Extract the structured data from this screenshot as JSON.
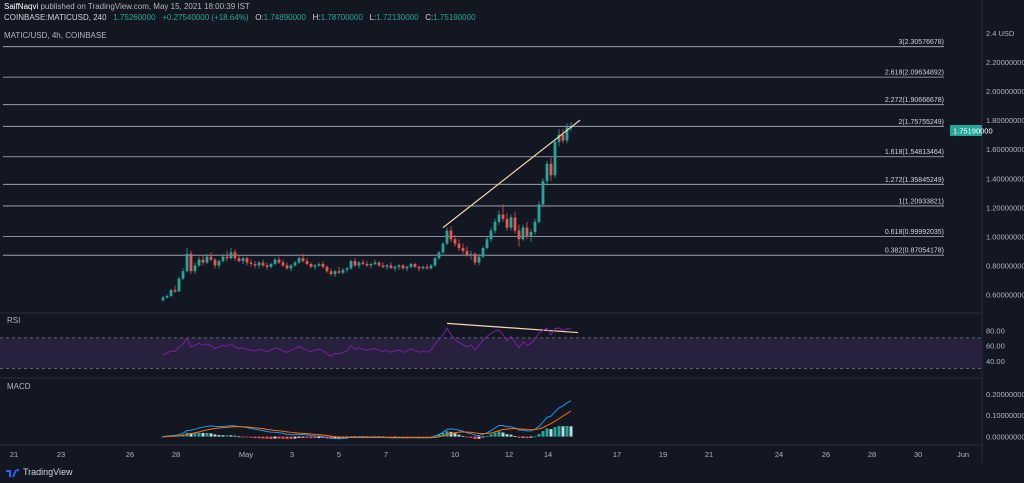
{
  "header": {
    "author": "SaifNaqvi",
    "published_text": "published on TradingView.com, May 15, 2021 18:00:39 IST",
    "symbol_line": "COINBASE:MATICUSD, 240",
    "last": "1.75260000",
    "change": "+0.27540000 (+18.64%)",
    "o_label": "O:",
    "o_value": "1.74890000",
    "h_label": "H:",
    "h_value": "1.78700000",
    "l_label": "L:",
    "l_value": "1.72130000",
    "c_label": "C:",
    "c_value": "1.75190000",
    "pane_title": "MATIC/USD, 4h, COINBASE"
  },
  "footer": {
    "brand": "TradingView"
  },
  "colors": {
    "background": "#131722",
    "up": "#26a69a",
    "down": "#ef5350",
    "fib": "#b2b5be",
    "trendline": "#f6d5b0",
    "rsi": "#7b1fa2",
    "rsi_band": "#2a2240",
    "macd_line": "#2196f3",
    "signal_line": "#ff6d00",
    "current_price": "#26a69a"
  },
  "chart_data": [
    {
      "type": "candlestick",
      "title": "MATIC/USD, 4h, COINBASE",
      "ylim": [
        0.5,
        2.4
      ],
      "y_ticks": [
        "2.4 USD",
        "2.20000000",
        "2.00000000",
        "1.80000000",
        "1.60000000",
        "1.40000000",
        "1.20000000",
        "1.00000000",
        "0.80000000",
        "0.60000000"
      ],
      "y_tick_values": [
        2.4,
        2.2,
        2.0,
        1.8,
        1.6,
        1.4,
        1.2,
        1.0,
        0.8,
        0.6
      ],
      "x_ticks": [
        "21",
        "23",
        "26",
        "28",
        "May",
        "3",
        "5",
        "7",
        "10",
        "12",
        "14",
        "17",
        "19",
        "21",
        "24",
        "26",
        "28",
        "30",
        "Jun"
      ],
      "current_price_label": "1.75190000",
      "current_price": 1.7519,
      "fib_levels": [
        {
          "label": "3(2.30576678)",
          "value": 2.30576678
        },
        {
          "label": "2.618(2.09634892)",
          "value": 2.09634892
        },
        {
          "label": "2.272(1.90666678)",
          "value": 1.90666678
        },
        {
          "label": "2(1.75755249)",
          "value": 1.75755249
        },
        {
          "label": "1.618(1.54813464)",
          "value": 1.54813464
        },
        {
          "label": "1.272(1.35845249)",
          "value": 1.35845249
        },
        {
          "label": "1(1.20933821)",
          "value": 1.20933821
        },
        {
          "label": "0.618(0.99992035)",
          "value": 0.99992035
        },
        {
          "label": "0.382(0.87054178)",
          "value": 0.87054178
        }
      ],
      "trendline": [
        {
          "date": "May 9",
          "value": 1.06
        },
        {
          "date": "May 15",
          "value": 1.8
        }
      ],
      "candles": [
        [
          0.56,
          0.59,
          0.55,
          0.58
        ],
        [
          0.58,
          0.6,
          0.57,
          0.59
        ],
        [
          0.59,
          0.64,
          0.58,
          0.63
        ],
        [
          0.63,
          0.66,
          0.61,
          0.62
        ],
        [
          0.62,
          0.72,
          0.62,
          0.71
        ],
        [
          0.71,
          0.78,
          0.7,
          0.76
        ],
        [
          0.76,
          0.92,
          0.75,
          0.88
        ],
        [
          0.88,
          0.9,
          0.74,
          0.76
        ],
        [
          0.76,
          0.82,
          0.74,
          0.8
        ],
        [
          0.8,
          0.86,
          0.79,
          0.84
        ],
        [
          0.84,
          0.87,
          0.8,
          0.82
        ],
        [
          0.82,
          0.88,
          0.81,
          0.86
        ],
        [
          0.86,
          0.89,
          0.83,
          0.84
        ],
        [
          0.84,
          0.85,
          0.78,
          0.8
        ],
        [
          0.8,
          0.84,
          0.78,
          0.83
        ],
        [
          0.83,
          0.88,
          0.82,
          0.86
        ],
        [
          0.86,
          0.9,
          0.83,
          0.85
        ],
        [
          0.85,
          0.92,
          0.84,
          0.89
        ],
        [
          0.89,
          0.91,
          0.83,
          0.85
        ],
        [
          0.85,
          0.87,
          0.82,
          0.83
        ],
        [
          0.83,
          0.86,
          0.81,
          0.85
        ],
        [
          0.85,
          0.86,
          0.8,
          0.82
        ],
        [
          0.82,
          0.84,
          0.79,
          0.81
        ],
        [
          0.81,
          0.83,
          0.78,
          0.8
        ],
        [
          0.8,
          0.83,
          0.78,
          0.82
        ],
        [
          0.82,
          0.84,
          0.79,
          0.8
        ],
        [
          0.8,
          0.82,
          0.77,
          0.79
        ],
        [
          0.79,
          0.82,
          0.78,
          0.81
        ],
        [
          0.81,
          0.85,
          0.8,
          0.84
        ],
        [
          0.84,
          0.86,
          0.81,
          0.82
        ],
        [
          0.82,
          0.84,
          0.79,
          0.8
        ],
        [
          0.8,
          0.82,
          0.77,
          0.78
        ],
        [
          0.78,
          0.81,
          0.76,
          0.8
        ],
        [
          0.8,
          0.83,
          0.79,
          0.82
        ],
        [
          0.82,
          0.86,
          0.81,
          0.85
        ],
        [
          0.85,
          0.88,
          0.82,
          0.83
        ],
        [
          0.83,
          0.85,
          0.8,
          0.81
        ],
        [
          0.81,
          0.82,
          0.78,
          0.79
        ],
        [
          0.79,
          0.81,
          0.77,
          0.8
        ],
        [
          0.8,
          0.82,
          0.79,
          0.81
        ],
        [
          0.81,
          0.83,
          0.78,
          0.79
        ],
        [
          0.79,
          0.8,
          0.75,
          0.76
        ],
        [
          0.76,
          0.78,
          0.73,
          0.74
        ],
        [
          0.74,
          0.77,
          0.72,
          0.76
        ],
        [
          0.76,
          0.79,
          0.74,
          0.75
        ],
        [
          0.75,
          0.78,
          0.74,
          0.77
        ],
        [
          0.77,
          0.79,
          0.75,
          0.78
        ],
        [
          0.78,
          0.84,
          0.77,
          0.83
        ],
        [
          0.83,
          0.85,
          0.79,
          0.8
        ],
        [
          0.8,
          0.83,
          0.78,
          0.82
        ],
        [
          0.82,
          0.84,
          0.8,
          0.81
        ],
        [
          0.81,
          0.83,
          0.79,
          0.8
        ],
        [
          0.8,
          0.82,
          0.78,
          0.81
        ],
        [
          0.81,
          0.84,
          0.8,
          0.82
        ],
        [
          0.82,
          0.83,
          0.79,
          0.8
        ],
        [
          0.8,
          0.82,
          0.78,
          0.79
        ],
        [
          0.79,
          0.81,
          0.77,
          0.8
        ],
        [
          0.8,
          0.82,
          0.78,
          0.78
        ],
        [
          0.78,
          0.8,
          0.76,
          0.79
        ],
        [
          0.79,
          0.81,
          0.77,
          0.8
        ],
        [
          0.8,
          0.81,
          0.77,
          0.78
        ],
        [
          0.78,
          0.8,
          0.76,
          0.79
        ],
        [
          0.79,
          0.82,
          0.78,
          0.81
        ],
        [
          0.81,
          0.82,
          0.78,
          0.79
        ],
        [
          0.79,
          0.8,
          0.76,
          0.78
        ],
        [
          0.78,
          0.8,
          0.77,
          0.79
        ],
        [
          0.79,
          0.81,
          0.77,
          0.78
        ],
        [
          0.78,
          0.81,
          0.77,
          0.8
        ],
        [
          0.8,
          0.86,
          0.79,
          0.85
        ],
        [
          0.85,
          0.9,
          0.84,
          0.89
        ],
        [
          0.89,
          0.96,
          0.88,
          0.95
        ],
        [
          0.95,
          1.06,
          0.94,
          1.04
        ],
        [
          1.04,
          1.07,
          0.96,
          0.98
        ],
        [
          0.98,
          1.01,
          0.93,
          0.95
        ],
        [
          0.95,
          0.98,
          0.9,
          0.92
        ],
        [
          0.92,
          0.95,
          0.88,
          0.9
        ],
        [
          0.9,
          0.93,
          0.86,
          0.87
        ],
        [
          0.87,
          0.9,
          0.84,
          0.88
        ],
        [
          0.88,
          0.89,
          0.8,
          0.82
        ],
        [
          0.82,
          0.88,
          0.8,
          0.86
        ],
        [
          0.86,
          0.93,
          0.85,
          0.92
        ],
        [
          0.92,
          1.0,
          0.91,
          0.98
        ],
        [
          0.98,
          1.06,
          0.96,
          1.04
        ],
        [
          1.04,
          1.12,
          1.02,
          1.1
        ],
        [
          1.1,
          1.18,
          1.08,
          1.15
        ],
        [
          1.15,
          1.22,
          1.1,
          1.12
        ],
        [
          1.12,
          1.16,
          1.04,
          1.06
        ],
        [
          1.06,
          1.15,
          1.04,
          1.13
        ],
        [
          1.13,
          1.17,
          1.02,
          1.04
        ],
        [
          1.04,
          1.08,
          0.93,
          0.98
        ],
        [
          0.98,
          1.08,
          0.97,
          1.06
        ],
        [
          1.06,
          1.1,
          0.98,
          1.0
        ],
        [
          1.0,
          1.05,
          0.96,
          1.03
        ],
        [
          1.03,
          1.12,
          1.01,
          1.1
        ],
        [
          1.1,
          1.24,
          1.09,
          1.22
        ],
        [
          1.22,
          1.4,
          1.2,
          1.38
        ],
        [
          1.38,
          1.52,
          1.35,
          1.5
        ],
        [
          1.5,
          1.54,
          1.38,
          1.42
        ],
        [
          1.42,
          1.67,
          1.4,
          1.65
        ],
        [
          1.65,
          1.74,
          1.62,
          1.7
        ],
        [
          1.7,
          1.74,
          1.64,
          1.66
        ],
        [
          1.66,
          1.78,
          1.64,
          1.75
        ],
        [
          1.749,
          1.787,
          1.7213,
          1.7519
        ]
      ]
    },
    {
      "type": "line",
      "title": "RSI",
      "y_ticks": [
        "80.00",
        "60.00",
        "40.00"
      ],
      "y_tick_values": [
        80,
        60,
        40
      ],
      "ylim": [
        20,
        100
      ],
      "band": [
        30,
        70
      ],
      "trendline": [
        {
          "date": "May 9",
          "value": 89
        },
        {
          "date": "May 15",
          "value": 77
        }
      ],
      "values": [
        48,
        50,
        53,
        52,
        58,
        62,
        70,
        58,
        60,
        63,
        60,
        62,
        60,
        56,
        58,
        60,
        59,
        62,
        58,
        56,
        57,
        55,
        54,
        53,
        55,
        54,
        52,
        54,
        57,
        55,
        53,
        51,
        54,
        56,
        59,
        56,
        54,
        52,
        54,
        55,
        53,
        49,
        46,
        50,
        49,
        51,
        53,
        60,
        55,
        57,
        55,
        54,
        55,
        56,
        54,
        52,
        54,
        51,
        53,
        54,
        51,
        53,
        56,
        53,
        51,
        53,
        51,
        54,
        62,
        68,
        74,
        83,
        74,
        68,
        64,
        61,
        58,
        61,
        54,
        60,
        67,
        72,
        76,
        79,
        80,
        74,
        66,
        72,
        64,
        57,
        65,
        60,
        63,
        69,
        76,
        80,
        83,
        74,
        82,
        83,
        80,
        82,
        82
      ]
    },
    {
      "type": "bar+line",
      "title": "MACD",
      "y_ticks": [
        "0.20000000",
        "0.10000000",
        "0.00000000"
      ],
      "y_tick_values": [
        0.2,
        0.1,
        0.0
      ],
      "ylim": [
        -0.03,
        0.26
      ],
      "series": [
        {
          "values": [
            0.0,
            0.002,
            0.004,
            0.006,
            0.01,
            0.016,
            0.028,
            0.03,
            0.034,
            0.04,
            0.044,
            0.048,
            0.05,
            0.048,
            0.047,
            0.048,
            0.049,
            0.051,
            0.05,
            0.047,
            0.045,
            0.042,
            0.038,
            0.034,
            0.031,
            0.028,
            0.024,
            0.021,
            0.02,
            0.018,
            0.015,
            0.011,
            0.009,
            0.009,
            0.01,
            0.01,
            0.008,
            0.005,
            0.003,
            0.002,
            0.0,
            -0.004,
            -0.008,
            -0.009,
            -0.01,
            -0.009,
            -0.008,
            -0.002,
            -0.003,
            -0.002,
            -0.002,
            -0.003,
            -0.003,
            -0.002,
            -0.003,
            -0.004,
            -0.004,
            -0.006,
            -0.006,
            -0.005,
            -0.006,
            -0.006,
            -0.005,
            -0.005,
            -0.006,
            -0.005,
            -0.006,
            -0.005,
            0.002,
            0.01,
            0.02,
            0.034,
            0.036,
            0.034,
            0.03,
            0.025,
            0.018,
            0.014,
            0.006,
            0.005,
            0.01,
            0.018,
            0.028,
            0.04,
            0.052,
            0.052,
            0.046,
            0.046,
            0.04,
            0.03,
            0.03,
            0.026,
            0.027,
            0.034,
            0.048,
            0.068,
            0.09,
            0.096,
            0.116,
            0.134,
            0.144,
            0.158,
            0.168
          ]
        },
        {
          "values": [
            0.0,
            0.0,
            0.001,
            0.002,
            0.004,
            0.006,
            0.01,
            0.014,
            0.018,
            0.022,
            0.027,
            0.031,
            0.035,
            0.038,
            0.04,
            0.042,
            0.043,
            0.045,
            0.046,
            0.046,
            0.046,
            0.045,
            0.043,
            0.041,
            0.039,
            0.037,
            0.034,
            0.032,
            0.029,
            0.027,
            0.025,
            0.022,
            0.02,
            0.018,
            0.016,
            0.015,
            0.014,
            0.012,
            0.01,
            0.009,
            0.007,
            0.005,
            0.002,
            0.0,
            -0.002,
            -0.003,
            -0.004,
            -0.004,
            -0.004,
            -0.004,
            -0.004,
            -0.004,
            -0.004,
            -0.004,
            -0.004,
            -0.004,
            -0.004,
            -0.004,
            -0.005,
            -0.005,
            -0.005,
            -0.005,
            -0.005,
            -0.005,
            -0.005,
            -0.005,
            -0.005,
            -0.005,
            -0.004,
            -0.001,
            0.003,
            0.009,
            0.014,
            0.018,
            0.021,
            0.022,
            0.021,
            0.02,
            0.017,
            0.015,
            0.014,
            0.015,
            0.017,
            0.022,
            0.028,
            0.033,
            0.035,
            0.037,
            0.038,
            0.036,
            0.035,
            0.033,
            0.032,
            0.033,
            0.036,
            0.042,
            0.052,
            0.061,
            0.072,
            0.084,
            0.096,
            0.108,
            0.12
          ]
        }
      ]
    }
  ]
}
